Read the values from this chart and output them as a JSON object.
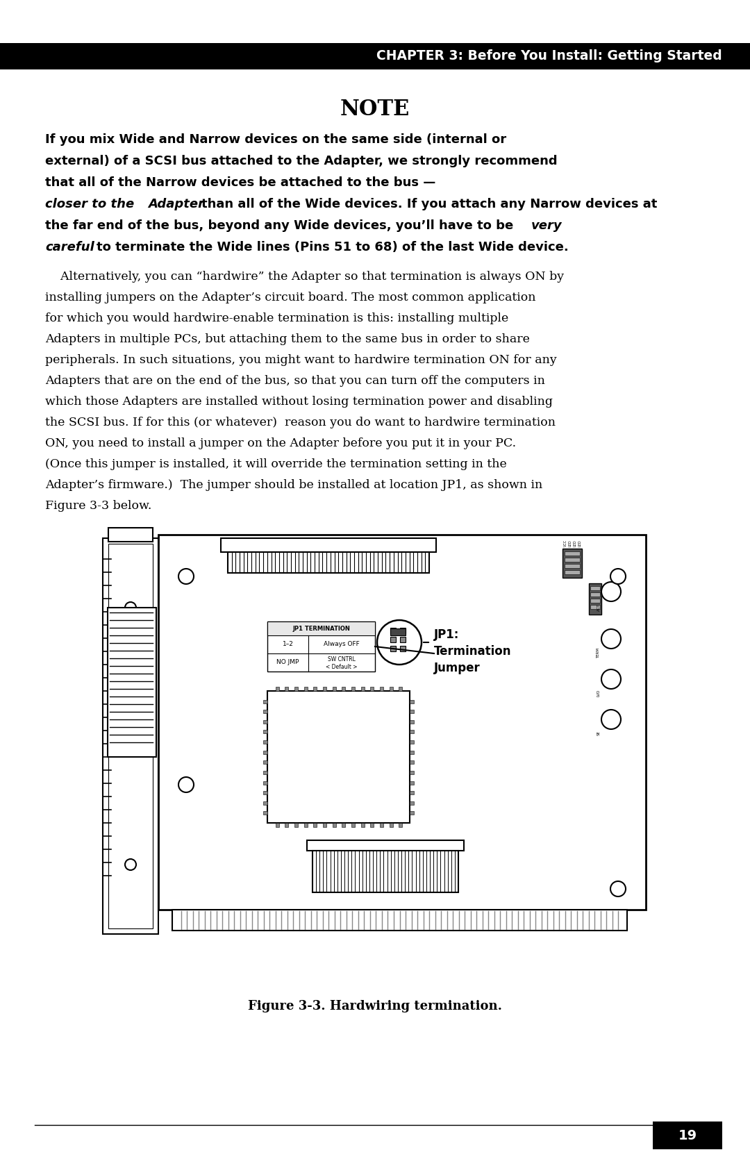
{
  "page_bg": "#ffffff",
  "header_bg": "#000000",
  "header_text": "CHAPTER 3: Before You Install: Getting Started",
  "header_text_color": "#ffffff",
  "note_title": "NOTE",
  "figure_caption": "Figure 3-3. Hardwiring termination.",
  "page_number": "19",
  "jp1_label1": "JP1:",
  "jp1_label2": "Termination",
  "jp1_label3": "Jumper",
  "table_header": "JP1 TERMINATION",
  "table_row1_col1": "1–2",
  "table_row1_col2": "Always OFF",
  "table_row2_col1": "NO JMP",
  "table_row2_col2": "SW CNTRL\n< Default >"
}
